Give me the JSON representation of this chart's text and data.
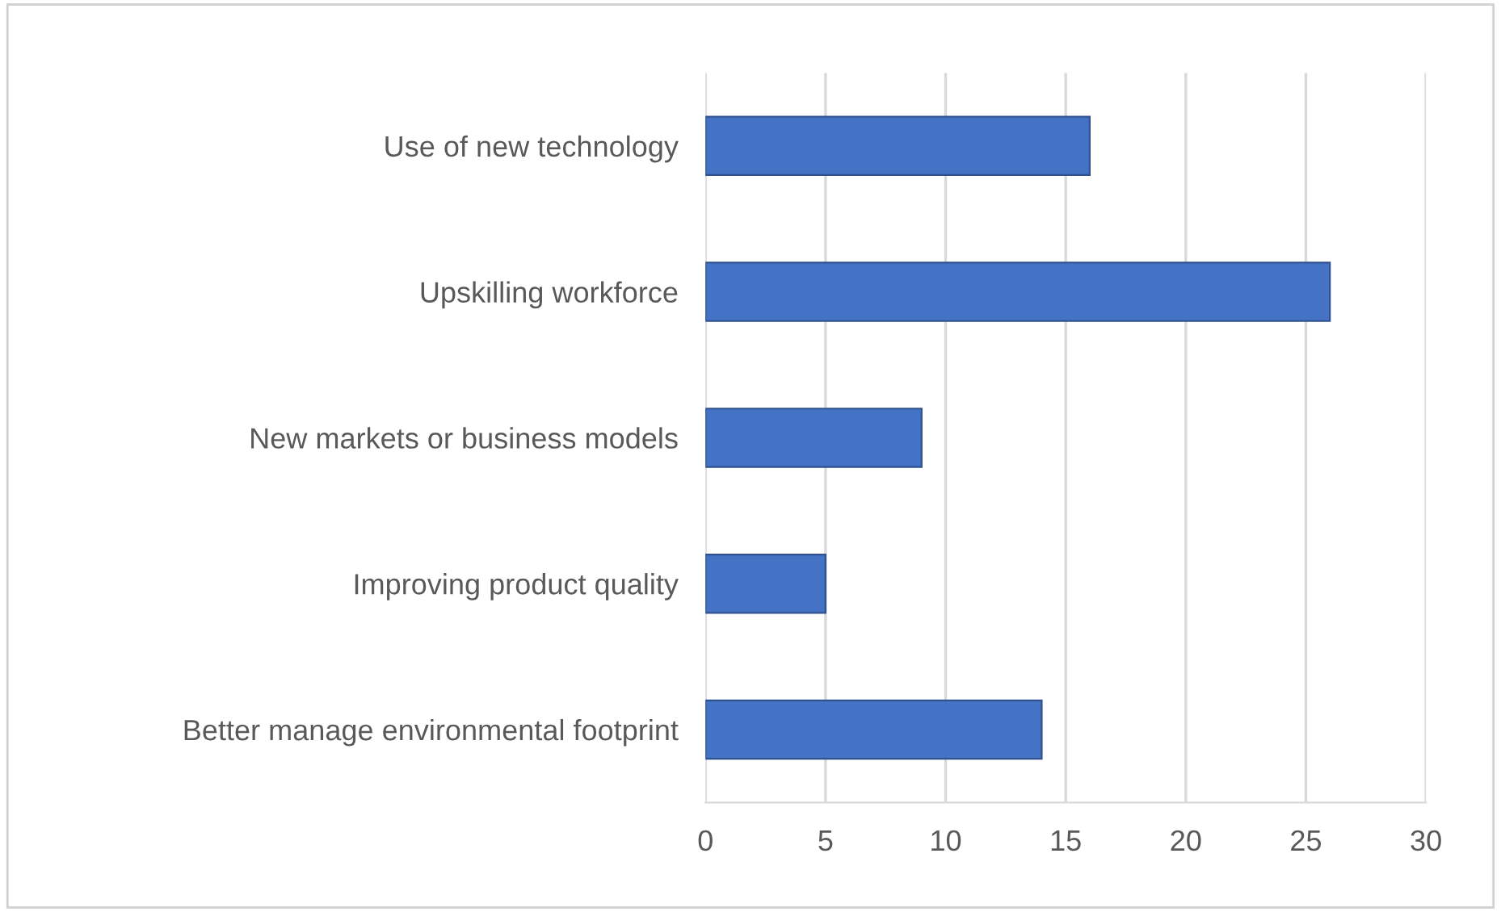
{
  "chart_data": {
    "type": "bar",
    "orientation": "horizontal",
    "categories": [
      "Use of new technology",
      "Upskilling workforce",
      "New markets or business models",
      "Improving product quality",
      "Better manage environmental footprint"
    ],
    "values": [
      16,
      26,
      9,
      5,
      14
    ],
    "color": "#4472c4",
    "xlim": [
      0,
      30
    ],
    "xticks": [
      0,
      5,
      10,
      15,
      20,
      25,
      30
    ],
    "grid": "x",
    "legend": false
  }
}
